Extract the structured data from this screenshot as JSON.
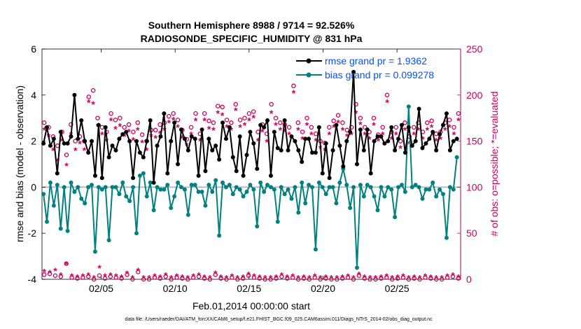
{
  "chart_data": {
    "type": "line",
    "title_line1": "Southern Hemisphere 8988 / 9714 = 92.526%",
    "title_line2": "RADIOSONDE_SPECIFIC_HUMIDITY @ 831 hPa",
    "xlabel": "Feb.01,2014 00:00:00 start",
    "ylabel_left": "rmse and bias (model - observation)",
    "ylabel_right": "# of obs: o=possible; *=evaluated",
    "footer": "data file: /Users/raeder/DAI/ATM_forcXX/CAM6_setup/f.e21.FHIST_BGC.f09_025.CAM6assim.011/Diags_NTrS_2014-02/obs_diag_output.nc",
    "xlim": [
      1,
      29.3
    ],
    "ylim_left": [
      -4,
      6
    ],
    "ylim_right": [
      0,
      250
    ],
    "x_ticks": [
      5,
      10,
      15,
      20,
      25
    ],
    "x_tick_labels": [
      "02/05",
      "02/10",
      "02/15",
      "02/20",
      "02/25"
    ],
    "y_ticks_left": [
      -4,
      -2,
      0,
      2,
      4,
      6
    ],
    "y_ticks_right": [
      0,
      50,
      100,
      150,
      200,
      250
    ],
    "legend": [
      {
        "label": "rmse grand pr = 1.9362",
        "color": "#000000"
      },
      {
        "label": "bias grand pr = 0.099278",
        "color": "#008080"
      }
    ],
    "colors": {
      "rmse": "#000000",
      "bias": "#008080",
      "obs": "#cc0055",
      "zero_line": "#bbbbbb",
      "legend_text": "#0050ff"
    },
    "rmse": [
      1.9,
      2.6,
      1.8,
      2.1,
      0.6,
      2.4,
      1.9,
      1.9,
      2.2,
      4.0,
      2.1,
      2.9,
      2.0,
      1.5,
      2.0,
      0.5,
      2.7,
      0.4,
      2.6,
      1.3,
      1.8,
      1.6,
      2.1,
      2.3,
      2.4,
      2.0,
      0.4,
      2.0,
      1.5,
      1.3,
      2.0,
      2.9,
      0.2,
      1.8,
      2.2,
      3.2,
      0.6,
      2.0,
      2.8,
      1.0,
      2.5,
      2.1,
      1.6,
      2.2,
      2.1,
      0.5,
      2.5,
      0.7,
      2.1,
      1.6,
      1.8,
      1.2,
      2.8,
      2.1,
      2.6,
      1.3,
      0.7,
      2.2,
      0.5,
      1.4,
      2.4,
      1.9,
      0.8,
      2.7,
      2.6,
      2.9,
      0.5,
      2.4,
      1.7,
      1.6,
      2.9,
      1.6,
      2.2,
      2.0,
      1.6,
      1.1,
      2.1,
      2.1,
      1.5,
      1.5,
      2.6,
      0.6,
      1.9,
      0.4,
      1.6,
      2.7,
      1.8,
      0.9,
      2.0,
      2.4,
      5.0,
      1.0,
      2.5,
      1.6,
      2.5,
      0.6,
      2.0,
      2.2,
      2.2,
      1.9,
      2.0,
      2.6,
      1.6,
      2.1,
      2.7,
      1.5,
      2.6,
      1.8,
      2.0,
      3.4,
      1.7,
      1.9,
      2.1,
      2.4,
      1.6,
      2.3,
      2.7,
      3.2,
      1.6,
      2.0,
      2.1
    ],
    "bias": [
      -0.3,
      -1.5,
      0.2,
      -0.8,
      0.1,
      -1.8,
      0.0,
      -1.9,
      0.2,
      -0.2,
      0.0,
      -0.5,
      -0.7,
      0.0,
      0.1,
      -2.8,
      0.0,
      -0.1,
      0.0,
      -2.3,
      0.0,
      0.0,
      -0.3,
      0.2,
      -0.4,
      -0.6,
      0.0,
      -2.0,
      0.5,
      0.6,
      -0.4,
      0.2,
      -1.0,
      0.0,
      -0.1,
      -0.1,
      0.1,
      -0.9,
      -0.4,
      0.2,
      0.0,
      -0.1,
      -1.2,
      0.1,
      0.1,
      -0.2,
      -0.2,
      -0.8,
      0.1,
      -0.2,
      0.3,
      -2.1,
      0.2,
      0.0,
      0.1,
      -0.3,
      0.0,
      -0.1,
      -0.4,
      -0.2,
      0.1,
      -0.1,
      -1.7,
      0.2,
      -0.2,
      0.1,
      0.0,
      -0.1,
      -1.5,
      0.0,
      -0.3,
      -0.1,
      -0.5,
      0.0,
      -1.1,
      0.2,
      -0.7,
      0.1,
      0.0,
      -2.7,
      0.2,
      0.0,
      -0.3,
      0.0,
      0.0,
      -0.7,
      0.2,
      0.8,
      0.1,
      -0.9,
      0.0,
      -3.5,
      0.1,
      -0.4,
      0.1,
      0.0,
      -0.4,
      -1.0,
      0.0,
      -0.4,
      0.0,
      -0.1,
      -1.3,
      0.0,
      0.1,
      -0.2,
      3.5,
      0.0,
      0.1,
      0.0,
      -0.5,
      -0.1,
      -0.1,
      0.2,
      -0.4,
      -0.1,
      -0.3,
      -2.2,
      0.0,
      -0.1,
      1.3
    ],
    "obs_possible": [
      170,
      165,
      155,
      145,
      160,
      135,
      168,
      150,
      155,
      150,
      198,
      205,
      175,
      165,
      160,
      180,
      173,
      175,
      165,
      168,
      160,
      170,
      157,
      150,
      162,
      162,
      168,
      170,
      177,
      180,
      173,
      162,
      152,
      165,
      180,
      158,
      180,
      172,
      170,
      188,
      187,
      173,
      170,
      190,
      173,
      175,
      180,
      182,
      160,
      168,
      158,
      190,
      175,
      170,
      168,
      165,
      210,
      170,
      160,
      175,
      165,
      158,
      150,
      148,
      165,
      172,
      178,
      170,
      162,
      165,
      190,
      175,
      165,
      160,
      175,
      157,
      165,
      200,
      160,
      165,
      150,
      170,
      155,
      165,
      170,
      160,
      170,
      172,
      158,
      160,
      170,
      173,
      165,
      180
    ],
    "obs_evaluated": [
      162,
      155,
      140,
      128,
      150,
      123,
      157,
      140,
      147,
      140,
      192,
      190,
      166,
      157,
      150,
      172,
      163,
      166,
      155,
      160,
      151,
      162,
      148,
      140,
      155,
      153,
      158,
      162,
      170,
      173,
      165,
      153,
      145,
      157,
      172,
      150,
      172,
      163,
      162,
      180,
      178,
      165,
      162,
      183,
      165,
      167,
      172,
      175,
      150,
      160,
      149,
      180,
      167,
      162,
      160,
      157,
      202,
      162,
      152,
      167,
      157,
      150,
      142,
      140,
      157,
      165,
      170,
      162,
      155,
      157,
      180,
      168,
      157,
      152,
      167,
      150,
      157,
      192,
      152,
      157,
      142,
      162,
      147,
      157,
      162,
      152,
      162,
      165,
      150,
      152,
      162,
      165,
      157,
      172
    ],
    "obs_bottom_possible": [
      5,
      6,
      4,
      3,
      17,
      2,
      1,
      2,
      3,
      0,
      4,
      1,
      3,
      2,
      1,
      5,
      0,
      8,
      0,
      0,
      2,
      1,
      3,
      0,
      2,
      1,
      0,
      2,
      3,
      1,
      0,
      5,
      1,
      0,
      2,
      0,
      1,
      4,
      2,
      1,
      0,
      0,
      1,
      3,
      1,
      2,
      0,
      1,
      0,
      2,
      0,
      1,
      0,
      0,
      1,
      2,
      0,
      4,
      1,
      0,
      0,
      1,
      2,
      0,
      1,
      2,
      0,
      1,
      0,
      2,
      1,
      0,
      0,
      2,
      3,
      1
    ],
    "obs_bottom_evaluated": [
      8,
      7,
      9,
      4,
      16,
      3,
      2,
      3,
      4,
      1,
      12,
      3,
      4,
      3,
      2,
      6,
      1,
      9,
      1,
      1,
      3,
      2,
      4,
      1,
      3,
      2,
      1,
      3,
      4,
      2,
      1,
      6,
      2,
      1,
      3,
      1,
      2,
      5,
      3,
      2,
      1,
      1,
      2,
      4,
      2,
      3,
      1,
      2,
      1,
      3,
      1,
      2,
      1,
      1,
      2,
      3,
      1,
      5,
      2,
      1,
      1,
      2,
      3,
      1,
      2,
      3,
      1,
      2,
      1,
      3,
      2,
      1,
      1,
      3,
      4,
      2
    ]
  }
}
